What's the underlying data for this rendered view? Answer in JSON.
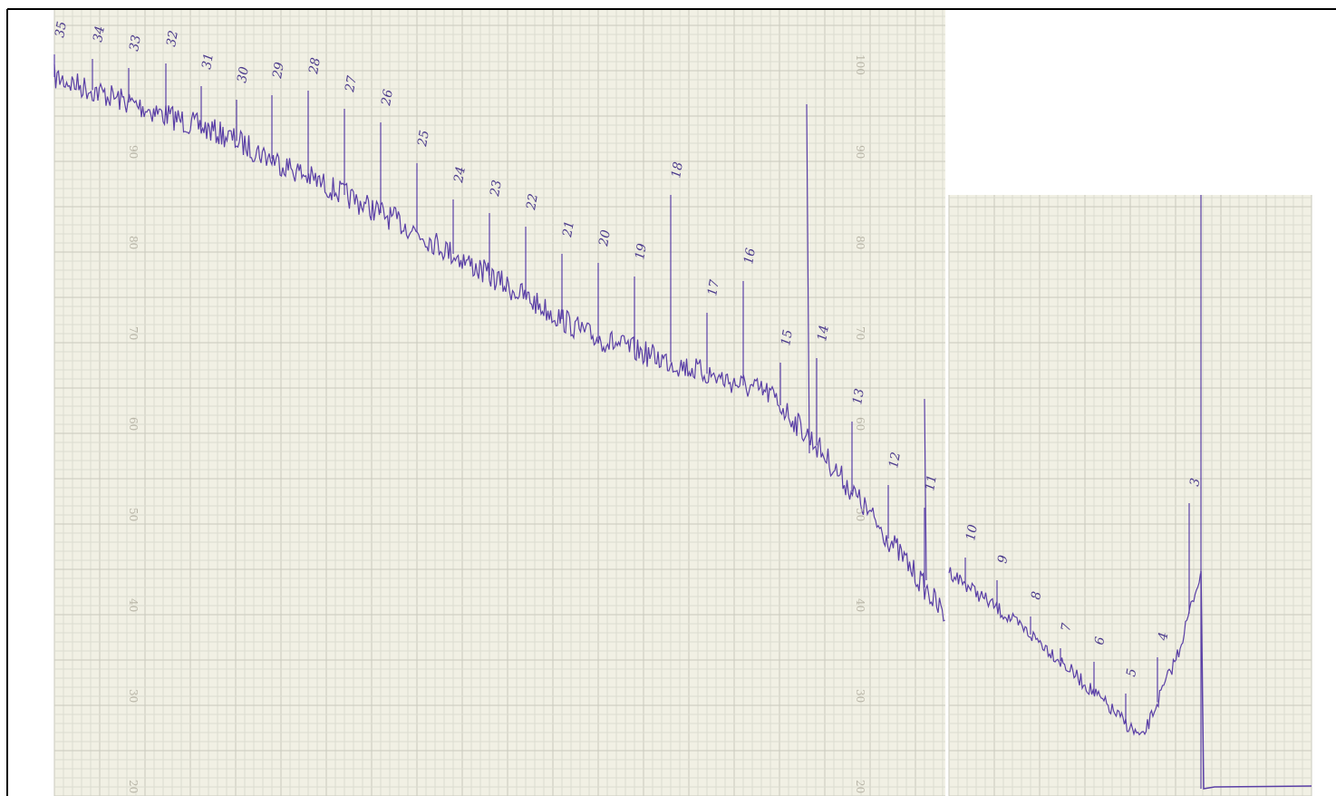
{
  "peak_labels": [
    "35",
    "34",
    "33",
    "32",
    "31",
    "30",
    "29",
    "28",
    "27",
    "26",
    "25",
    "24",
    "23",
    "22",
    "21",
    "20",
    "19",
    "18",
    "17",
    "16",
    "15",
    "14",
    "13",
    "12",
    "11",
    "10",
    "9",
    "8",
    "7",
    "6",
    "5",
    "4",
    "3"
  ],
  "scale_labels": [
    "100",
    "90",
    "80",
    "70",
    "60",
    "50",
    "40",
    "30",
    "20"
  ]
}
